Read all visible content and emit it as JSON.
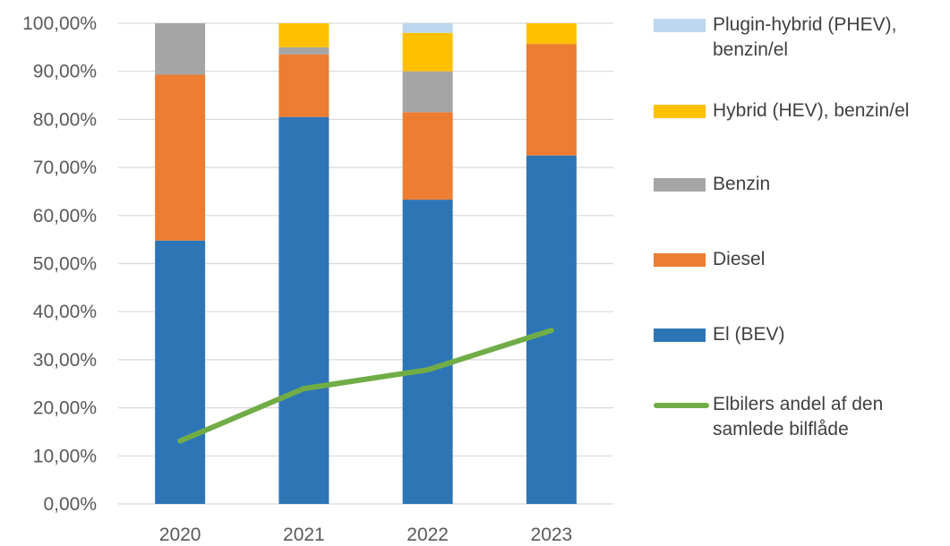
{
  "chart_data": {
    "type": "bar",
    "stacked": true,
    "categories": [
      "2020",
      "2021",
      "2022",
      "2023"
    ],
    "ylim": [
      0,
      100
    ],
    "yticks": [
      "0,00%",
      "10,00%",
      "20,00%",
      "30,00%",
      "40,00%",
      "50,00%",
      "60,00%",
      "70,00%",
      "80,00%",
      "90,00%",
      "100,00%"
    ],
    "grid": true,
    "legend_position": "right",
    "series": [
      {
        "name": "El (BEV)",
        "color": "#2E75B6",
        "values": [
          54.8,
          80.5,
          63.3,
          72.5
        ]
      },
      {
        "name": "Diesel",
        "color": "#ED7D31",
        "values": [
          34.5,
          13.0,
          18.2,
          23.2
        ]
      },
      {
        "name": "Benzin",
        "color": "#A5A5A5",
        "values": [
          10.7,
          1.5,
          8.5,
          0.0
        ]
      },
      {
        "name": "Hybrid (HEV), benzin/el",
        "color": "#FFC000",
        "values": [
          0.0,
          5.0,
          8.0,
          4.3
        ]
      },
      {
        "name": "Plugin-hybrid (PHEV), benzin/el",
        "color": "#BDD7EE",
        "values": [
          0.0,
          0.0,
          2.0,
          0.0
        ]
      }
    ],
    "line_series": {
      "name": "Elbilers andel af den samlede bilflåde",
      "color": "#70AD47",
      "values": [
        13.1,
        24.0,
        27.9,
        36.1
      ]
    }
  },
  "legend": [
    {
      "label_lines": [
        "Plugin-hybrid (PHEV),",
        "benzin/el"
      ],
      "color": "#BDD7EE",
      "kind": "box"
    },
    {
      "label_lines": [
        "Hybrid (HEV), benzin/el"
      ],
      "color": "#FFC000",
      "kind": "box"
    },
    {
      "label_lines": [
        "Benzin"
      ],
      "color": "#A5A5A5",
      "kind": "box"
    },
    {
      "label_lines": [
        "Diesel"
      ],
      "color": "#ED7D31",
      "kind": "box"
    },
    {
      "label_lines": [
        "El (BEV)"
      ],
      "color": "#2E75B6",
      "kind": "box"
    },
    {
      "label_lines": [
        "Elbilers andel af den",
        "samlede bilflåde"
      ],
      "color": "#70AD47",
      "kind": "line"
    }
  ]
}
